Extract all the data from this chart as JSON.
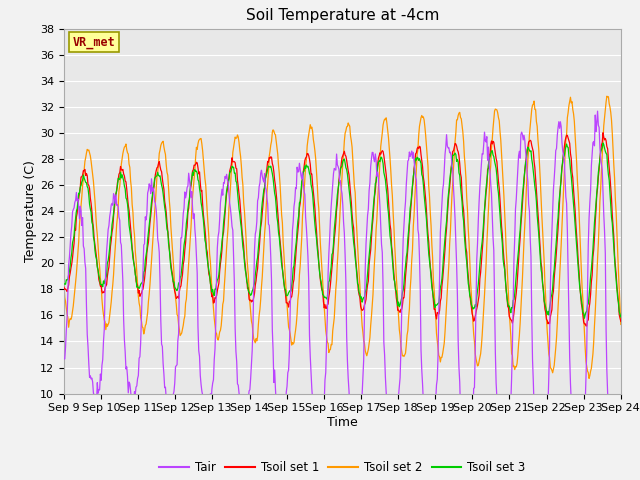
{
  "title": "Soil Temperature at -4cm",
  "xlabel": "Time",
  "ylabel": "Temperature (C)",
  "ylim": [
    10,
    38
  ],
  "xlim": [
    0,
    15
  ],
  "x_tick_labels": [
    "Sep 9",
    "Sep 10",
    "Sep 11",
    "Sep 12",
    "Sep 13",
    "Sep 14",
    "Sep 15",
    "Sep 16",
    "Sep 17",
    "Sep 18",
    "Sep 19",
    "Sep 20",
    "Sep 21",
    "Sep 22",
    "Sep 23",
    "Sep 24"
  ],
  "annotation_text": "VR_met",
  "annotation_bg": "#FFFF99",
  "annotation_border": "#999900",
  "annotation_text_color": "#990000",
  "colors": {
    "Tair": "#BB44FF",
    "Tsoil_set1": "#FF0000",
    "Tsoil_set2": "#FF9900",
    "Tsoil_set3": "#00CC00"
  },
  "legend_labels": [
    "Tair",
    "Tsoil set 1",
    "Tsoil set 2",
    "Tsoil set 3"
  ],
  "bg_color": "#E8E8E8",
  "grid_color": "#FFFFFF",
  "title_fontsize": 11,
  "axis_fontsize": 9,
  "tick_fontsize": 8
}
